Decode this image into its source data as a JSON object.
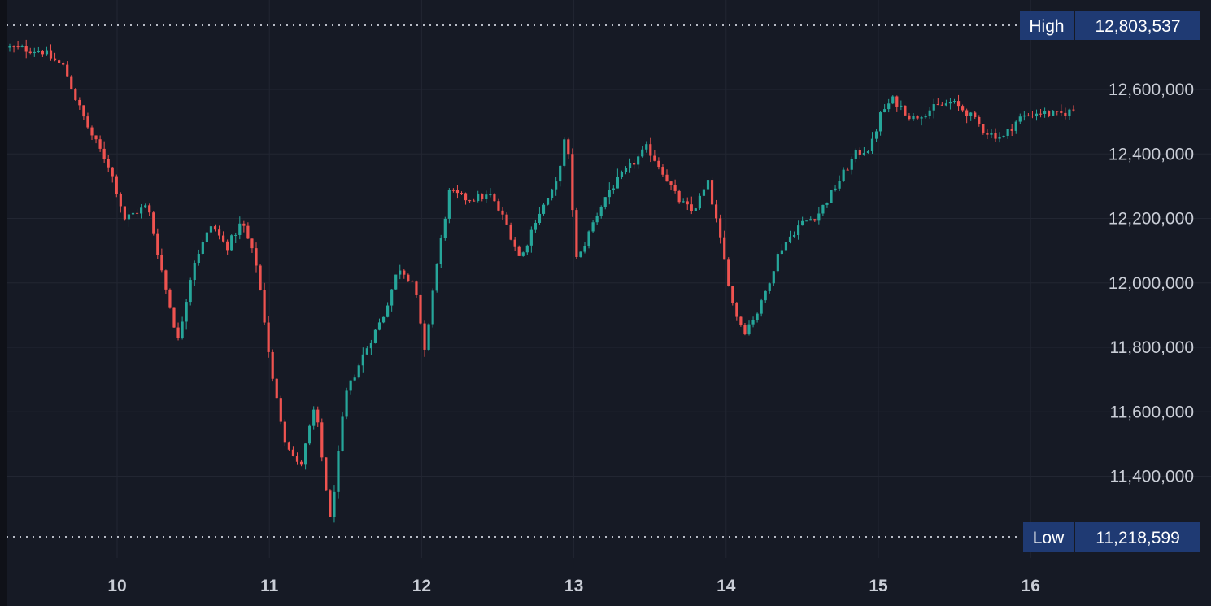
{
  "chart_data": {
    "type": "candlestick",
    "x_ticks": [
      "10",
      "11",
      "12",
      "13",
      "14",
      "15",
      "16"
    ],
    "y_ticks": [
      "12,600,000",
      "12,400,000",
      "12,200,000",
      "12,000,000",
      "11,800,000",
      "11,600,000",
      "11,400,000"
    ],
    "y_tick_values": [
      12600000,
      12400000,
      12200000,
      12000000,
      11800000,
      11600000,
      11400000
    ],
    "ylim": [
      11160000,
      12860000
    ],
    "x_range_days": [
      9.3,
      16.55
    ],
    "high": {
      "label": "High",
      "value_text": "12,803,537",
      "value": 12803537
    },
    "low": {
      "label": "Low",
      "value_text": "11,218,599",
      "value": 11218599
    },
    "price_path": [
      [
        9.3,
        12730000
      ],
      [
        9.5,
        12720000
      ],
      [
        9.65,
        12670000
      ],
      [
        9.72,
        12580000
      ],
      [
        9.82,
        12470000
      ],
      [
        9.95,
        12360000
      ],
      [
        10.05,
        12200000
      ],
      [
        10.2,
        12240000
      ],
      [
        10.32,
        11980000
      ],
      [
        10.4,
        11820000
      ],
      [
        10.5,
        12060000
      ],
      [
        10.62,
        12180000
      ],
      [
        10.72,
        12110000
      ],
      [
        10.82,
        12190000
      ],
      [
        10.92,
        12050000
      ],
      [
        11.02,
        11700000
      ],
      [
        11.1,
        11520000
      ],
      [
        11.2,
        11420000
      ],
      [
        11.3,
        11620000
      ],
      [
        11.4,
        11260000
      ],
      [
        11.5,
        11650000
      ],
      [
        11.62,
        11780000
      ],
      [
        11.75,
        11900000
      ],
      [
        11.85,
        12050000
      ],
      [
        11.95,
        12000000
      ],
      [
        12.02,
        11780000
      ],
      [
        12.08,
        12000000
      ],
      [
        12.18,
        12280000
      ],
      [
        12.3,
        12260000
      ],
      [
        12.45,
        12270000
      ],
      [
        12.55,
        12190000
      ],
      [
        12.65,
        12070000
      ],
      [
        12.75,
        12200000
      ],
      [
        12.88,
        12300000
      ],
      [
        12.95,
        12470000
      ],
      [
        13.02,
        12060000
      ],
      [
        13.12,
        12180000
      ],
      [
        13.22,
        12280000
      ],
      [
        13.35,
        12350000
      ],
      [
        13.48,
        12420000
      ],
      [
        13.58,
        12350000
      ],
      [
        13.68,
        12260000
      ],
      [
        13.78,
        12220000
      ],
      [
        13.88,
        12310000
      ],
      [
        13.95,
        12160000
      ],
      [
        14.05,
        11920000
      ],
      [
        14.12,
        11850000
      ],
      [
        14.22,
        11920000
      ],
      [
        14.35,
        12100000
      ],
      [
        14.48,
        12180000
      ],
      [
        14.6,
        12210000
      ],
      [
        14.72,
        12300000
      ],
      [
        14.85,
        12400000
      ],
      [
        14.95,
        12420000
      ],
      [
        15.02,
        12530000
      ],
      [
        15.1,
        12570000
      ],
      [
        15.22,
        12510000
      ],
      [
        15.35,
        12540000
      ],
      [
        15.48,
        12560000
      ],
      [
        15.58,
        12530000
      ],
      [
        15.7,
        12470000
      ],
      [
        15.82,
        12450000
      ],
      [
        15.92,
        12510000
      ],
      [
        16.05,
        12530000
      ],
      [
        16.18,
        12520000
      ],
      [
        16.3,
        12540000
      ]
    ],
    "colors": {
      "up": "#26a69a",
      "down": "#ef5350",
      "grid": "#222632",
      "background": "#161a25",
      "badge": "#1f3a73",
      "reference_line": "#b8bcc6"
    }
  }
}
